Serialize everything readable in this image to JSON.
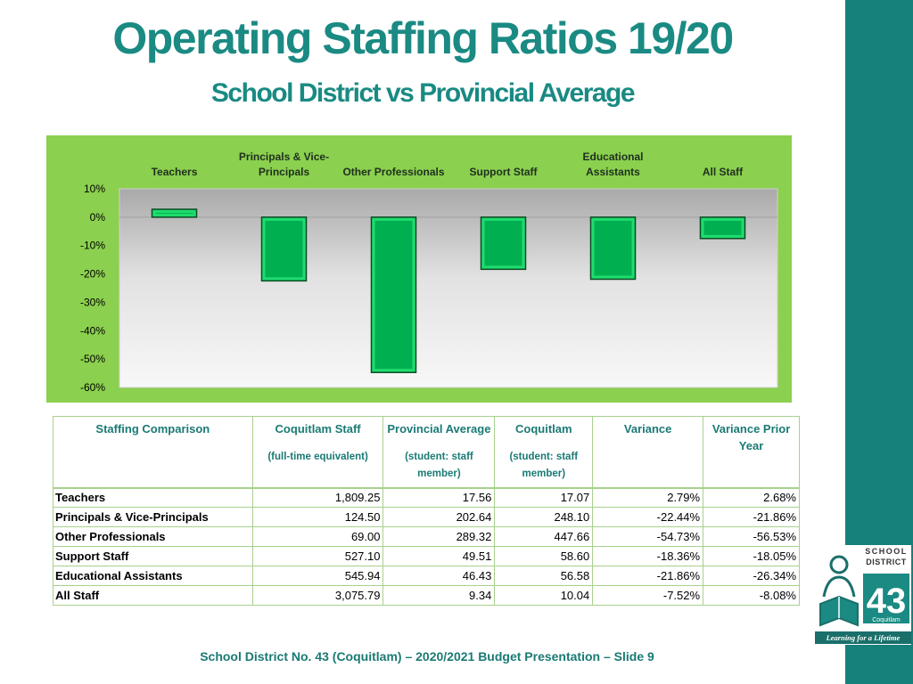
{
  "slide": {
    "title": "Operating Staffing Ratios 19/20",
    "subtitle": "School District vs Provincial Average",
    "footer": "School District No. 43 (Coquitlam) – 2020/2021 Budget Presentation – Slide 9"
  },
  "colors": {
    "sidebar": "#16807a",
    "title": "#1a8a83",
    "chart_background": "#8bd04e",
    "bar_fill": "#00b050"
  },
  "chart_data": {
    "type": "bar",
    "title": "",
    "xlabel": "",
    "ylabel": "",
    "categories": [
      [
        "Teachers"
      ],
      [
        "Principals & Vice-",
        "Principals"
      ],
      [
        "Other Professionals"
      ],
      [
        "Support Staff"
      ],
      [
        "Educational",
        "Assistants"
      ],
      [
        "All Staff"
      ]
    ],
    "values": [
      2.79,
      -22.44,
      -54.73,
      -18.36,
      -21.86,
      -7.52
    ],
    "ylim": [
      -60,
      10
    ],
    "ticks": [
      10,
      0,
      -10,
      -20,
      -30,
      -40,
      -50,
      -60
    ],
    "tick_labels": [
      "10%",
      "0%",
      "-10%",
      "-20%",
      "-30%",
      "-40%",
      "-50%",
      "-60%"
    ],
    "category_labels_position": "top",
    "grid": false,
    "legend": "none"
  },
  "table": {
    "headers": [
      {
        "label": "Staffing Comparison",
        "sub": ""
      },
      {
        "label": "Coquitlam Staff",
        "sub": "(full-time equivalent)"
      },
      {
        "label": "Provincial Average",
        "sub": "(student: staff member)"
      },
      {
        "label": "Coquitlam",
        "sub": "(student: staff member)"
      },
      {
        "label": "Variance",
        "sub": ""
      },
      {
        "label": "Variance Prior Year",
        "sub": ""
      }
    ],
    "rows": [
      [
        "Teachers",
        "1,809.25",
        "17.56",
        "17.07",
        "2.79%",
        "2.68%"
      ],
      [
        "Principals & Vice-Principals",
        "124.50",
        "202.64",
        "248.10",
        "-22.44%",
        "-21.86%"
      ],
      [
        "Other Professionals",
        "69.00",
        "289.32",
        "447.66",
        "-54.73%",
        "-56.53%"
      ],
      [
        "Support Staff",
        "527.10",
        "49.51",
        "58.60",
        "-18.36%",
        "-18.05%"
      ],
      [
        "Educational Assistants",
        "545.94",
        "46.43",
        "56.58",
        "-21.86%",
        "-26.34%"
      ],
      [
        "All Staff",
        "3,075.79",
        "9.34",
        "10.04",
        "-7.52%",
        "-8.08%"
      ]
    ]
  },
  "logo": {
    "line1": "SCHOOL",
    "line2": "DISTRICT",
    "number": "43",
    "name": "Coquitlam",
    "tagline": "Learning for a Lifetime",
    "icon": "reading-child-icon"
  }
}
